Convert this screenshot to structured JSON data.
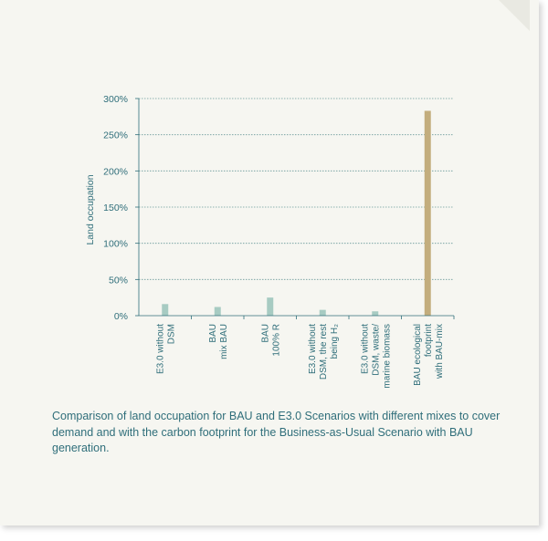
{
  "colors": {
    "page_background": "#f6f6f1",
    "text": "#2f6e7a",
    "e3_bar": "#a7cbc2",
    "bau_ecological_bar": "#c3ad7d",
    "gridline": "#6a9a9a"
  },
  "chart_data": {
    "type": "bar",
    "title": "",
    "ylabel": "Land occupation",
    "xlabel": "",
    "ylim": [
      0,
      300
    ],
    "yticks": [
      "300%",
      "250%",
      "200%",
      "150%",
      "100%",
      "50%",
      "0%"
    ],
    "grid": true,
    "categories": [
      [
        "E3.0 without",
        "DSM"
      ],
      [
        "BAU",
        "mix BAU"
      ],
      [
        "BAU",
        "100% R"
      ],
      [
        "E3.0 without",
        "DSM, the rest",
        "being H₂"
      ],
      [
        "E3.0 without",
        "DSM, waste/",
        "marine biomass"
      ],
      [
        "BAU ecological",
        "footprint",
        "with BAU-mix"
      ]
    ],
    "values": [
      16,
      12,
      25,
      8,
      6,
      283
    ],
    "bar_colors": [
      "e3_bar",
      "e3_bar",
      "e3_bar",
      "e3_bar",
      "e3_bar",
      "bau_ecological_bar"
    ]
  },
  "caption": "Comparison of land occupation for BAU and E3.0 Scenarios with different mixes to cover demand and with the carbon footprint for the Business-as-Usual Scenario with BAU generation."
}
